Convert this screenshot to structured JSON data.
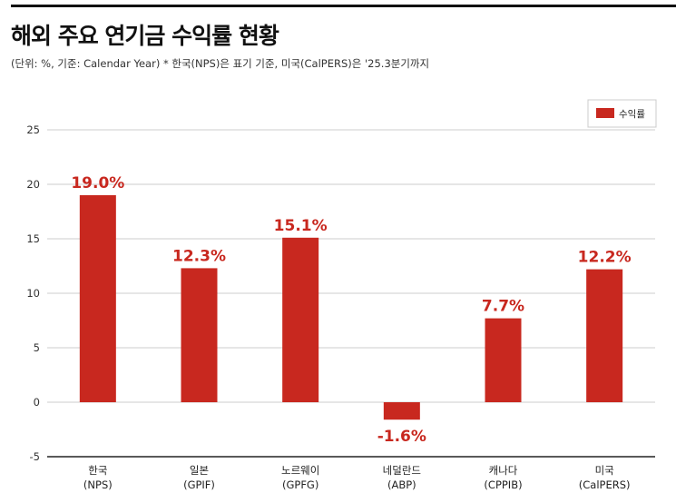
{
  "title": "해외 주요 연기금 수익률 현황",
  "subtitle": "(단위: %, 기준: Calendar Year) * 한국(NPS)은 표기 기준, 미국(CalPERS)은 '25.3분기까지",
  "chart_data": {
    "type": "bar",
    "categories": [
      [
        "한국",
        "(NPS)"
      ],
      [
        "일본",
        "(GPIF)"
      ],
      [
        "노르웨이",
        "(GPFG)"
      ],
      [
        "네덜란드",
        "(ABP)"
      ],
      [
        "캐나다",
        "(CPPIB)"
      ],
      [
        "미국",
        "(CalPERS)"
      ]
    ],
    "series": [
      {
        "name": "수익률",
        "values": [
          19.0,
          12.3,
          15.1,
          -1.6,
          7.7,
          12.2
        ],
        "color": "#c8281f"
      }
    ],
    "data_labels": [
      "19.0%",
      "12.3%",
      "15.1%",
      "-1.6%",
      "7.7%",
      "12.2%"
    ],
    "ylim": [
      -5,
      25
    ],
    "yticks": [
      25,
      20,
      15,
      10,
      5,
      0,
      -5
    ],
    "grid": true,
    "legend": "top-right",
    "label_color": "#c8281f"
  }
}
